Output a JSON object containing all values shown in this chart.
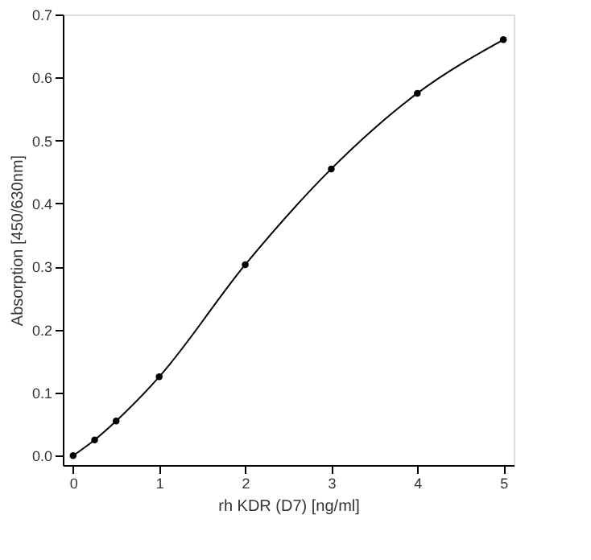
{
  "chart_data": {
    "type": "line",
    "xlabel": "rh KDR (D7) [ng/ml]",
    "ylabel": "Absorption [450/630nm]",
    "x": [
      0,
      0.25,
      0.5,
      1,
      2,
      3,
      4,
      5
    ],
    "series": [
      {
        "color": "#000000",
        "values": [
          0.0,
          0.025,
          0.055,
          0.125,
          0.303,
          0.455,
          0.575,
          0.66
        ]
      }
    ],
    "xlim": [
      -0.12,
      5.12
    ],
    "ylim": [
      -0.015,
      0.7
    ],
    "xticks": [
      0,
      1,
      2,
      3,
      4,
      5
    ],
    "yticks": [
      {
        "value": 0,
        "label": "0.0"
      },
      {
        "value": 0.1,
        "label": "0.1"
      },
      {
        "value": 0.2,
        "label": "0.2"
      },
      {
        "value": 0.3,
        "label": "0.3"
      },
      {
        "value": 0.4,
        "label": "0.4"
      },
      {
        "value": 0.5,
        "label": "0.5"
      },
      {
        "value": 0.6,
        "label": "0.6"
      },
      {
        "value": 0.7,
        "label": "0.7"
      }
    ],
    "grid": false,
    "marker": "circle",
    "line_style": "solid"
  }
}
